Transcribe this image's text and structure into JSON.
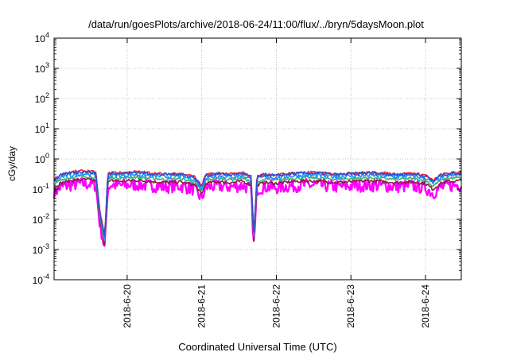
{
  "chart_data": {
    "type": "line",
    "title": "/data/run/goesPlots/archive/2018-06-24/11:00/flux/../bryn/5daysMoon.plot",
    "xlabel": "Coordinated Universal Time (UTC)",
    "ylabel": "cGy/day",
    "yscale": "log",
    "ylim": [
      0.0001,
      10000
    ],
    "xlim": [
      -0.98,
      4.48
    ],
    "x_tick_labels": [
      "2018-6-20",
      "2018-6-21",
      "2018-6-22",
      "2018-6-23",
      "2018-6-24"
    ],
    "x_tick_values": [
      0,
      1,
      2,
      3,
      4
    ],
    "y_tick_values": [
      0.0001,
      0.001,
      0.01,
      0.1,
      1,
      10,
      100,
      1000,
      10000
    ],
    "y_tick_labels": [
      {
        "base": "10",
        "exp": "-4"
      },
      {
        "base": "10",
        "exp": "-3"
      },
      {
        "base": "10",
        "exp": "-2"
      },
      {
        "base": "10",
        "exp": "-1"
      },
      {
        "base": "10",
        "exp": "0"
      },
      {
        "base": "10",
        "exp": "1"
      },
      {
        "base": "10",
        "exp": "2"
      },
      {
        "base": "10",
        "exp": "3"
      },
      {
        "base": "10",
        "exp": "4"
      }
    ],
    "grid": true,
    "series": [
      {
        "color": "#ff00ff",
        "factor": 0.4,
        "noise": 0.5,
        "dipScale": 0.3
      },
      {
        "color": "#8b1a4a",
        "factor": 0.55,
        "noise": 0.12,
        "dipScale": 1
      },
      {
        "color": "#3cb371",
        "factor": 0.7,
        "noise": 0.1,
        "dipScale": 1
      },
      {
        "color": "#1e90ff",
        "factor": 0.85,
        "noise": 0.15,
        "dipScale": 1
      },
      {
        "color": "#ff2020",
        "factor": 1.05,
        "noise": 0.1,
        "dipScale": 1
      },
      {
        "color": "#3050d0",
        "factor": 1.0,
        "noise": 0.12,
        "dipScale": 1
      }
    ],
    "base_points": [
      [
        -0.98,
        0.2
      ],
      [
        -0.9,
        0.28
      ],
      [
        -0.8,
        0.33
      ],
      [
        -0.7,
        0.36
      ],
      [
        -0.6,
        0.38
      ],
      [
        -0.5,
        0.37
      ],
      [
        -0.42,
        0.34
      ],
      [
        -0.37,
        0.02
      ],
      [
        -0.3,
        0.0025
      ],
      [
        -0.26,
        0.3
      ],
      [
        -0.2,
        0.35
      ],
      [
        -0.1,
        0.33
      ],
      [
        0.0,
        0.34
      ],
      [
        0.1,
        0.36
      ],
      [
        0.3,
        0.33
      ],
      [
        0.5,
        0.3
      ],
      [
        0.7,
        0.32
      ],
      [
        0.9,
        0.25
      ],
      [
        1.0,
        0.12
      ],
      [
        1.05,
        0.28
      ],
      [
        1.2,
        0.32
      ],
      [
        1.4,
        0.3
      ],
      [
        1.55,
        0.33
      ],
      [
        1.66,
        0.25
      ],
      [
        1.7,
        0.003
      ],
      [
        1.74,
        0.25
      ],
      [
        1.85,
        0.3
      ],
      [
        2.0,
        0.28
      ],
      [
        2.2,
        0.32
      ],
      [
        2.4,
        0.34
      ],
      [
        2.6,
        0.33
      ],
      [
        2.8,
        0.3
      ],
      [
        3.0,
        0.32
      ],
      [
        3.2,
        0.34
      ],
      [
        3.4,
        0.33
      ],
      [
        3.6,
        0.3
      ],
      [
        3.8,
        0.32
      ],
      [
        4.0,
        0.28
      ],
      [
        4.1,
        0.18
      ],
      [
        4.2,
        0.28
      ],
      [
        4.3,
        0.32
      ],
      [
        4.48,
        0.35
      ]
    ]
  }
}
